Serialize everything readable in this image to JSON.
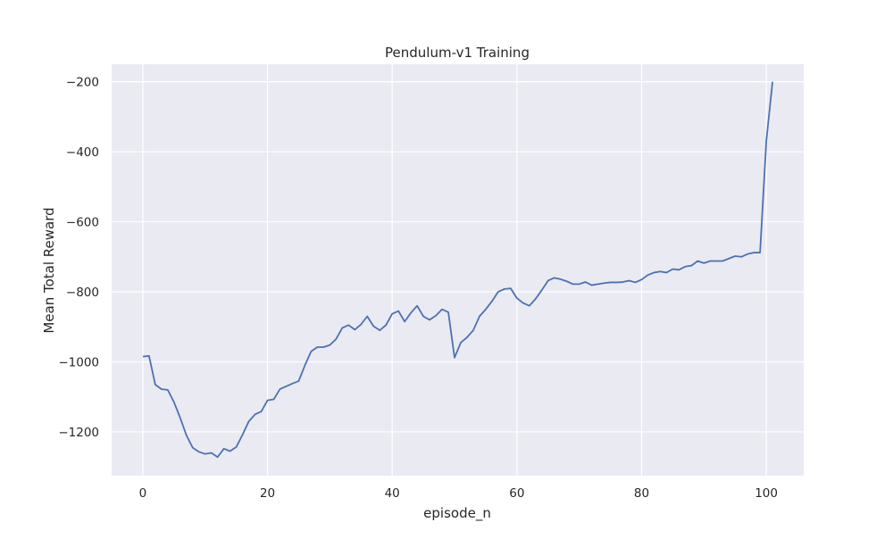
{
  "chart_data": {
    "type": "line",
    "title": "Pendulum-v1 Training",
    "xlabel": "episode_n",
    "ylabel": "Mean Total Reward",
    "xlim": [
      -5,
      106
    ],
    "ylim": [
      -1325,
      -150
    ],
    "x_ticks": [
      0,
      20,
      40,
      60,
      80,
      100
    ],
    "y_ticks": [
      -1200,
      -1000,
      -800,
      -600,
      -400,
      -200
    ],
    "grid": true,
    "colors": {
      "background": "#eaeaf2",
      "grid": "#ffffff",
      "line": "#4c72b0"
    },
    "series": [
      {
        "name": "Mean Total Reward",
        "x": [
          0,
          1,
          2,
          3,
          4,
          5,
          6,
          7,
          8,
          9,
          10,
          11,
          12,
          13,
          14,
          15,
          16,
          17,
          18,
          19,
          20,
          21,
          22,
          23,
          24,
          25,
          26,
          27,
          28,
          29,
          30,
          31,
          32,
          33,
          34,
          35,
          36,
          37,
          38,
          39,
          40,
          41,
          42,
          43,
          44,
          45,
          46,
          47,
          48,
          49,
          50,
          51,
          52,
          53,
          54,
          55,
          56,
          57,
          58,
          59,
          60,
          61,
          62,
          63,
          64,
          65,
          66,
          67,
          68,
          69,
          70,
          71,
          72,
          73,
          74,
          75,
          76,
          77,
          78,
          79,
          80,
          81,
          82,
          83,
          84,
          85,
          86,
          87,
          88,
          89,
          90,
          91,
          92,
          93,
          94,
          95,
          96,
          97,
          98,
          99,
          100,
          101
        ],
        "values": [
          -985,
          -983,
          -1065,
          -1078,
          -1080,
          -1115,
          -1160,
          -1210,
          -1245,
          -1257,
          -1263,
          -1260,
          -1272,
          -1248,
          -1255,
          -1243,
          -1208,
          -1170,
          -1150,
          -1142,
          -1110,
          -1107,
          -1078,
          -1070,
          -1062,
          -1055,
          -1010,
          -970,
          -958,
          -958,
          -952,
          -935,
          -903,
          -895,
          -908,
          -893,
          -870,
          -898,
          -910,
          -895,
          -863,
          -855,
          -885,
          -860,
          -840,
          -870,
          -880,
          -868,
          -850,
          -858,
          -988,
          -945,
          -930,
          -910,
          -870,
          -850,
          -827,
          -800,
          -792,
          -790,
          -818,
          -832,
          -840,
          -820,
          -795,
          -768,
          -760,
          -764,
          -770,
          -778,
          -778,
          -772,
          -781,
          -778,
          -775,
          -773,
          -773,
          -772,
          -768,
          -773,
          -765,
          -752,
          -745,
          -742,
          -745,
          -735,
          -737,
          -728,
          -725,
          -712,
          -718,
          -712,
          -712,
          -712,
          -705,
          -698,
          -700,
          -692,
          -688,
          -688,
          -370,
          -200
        ]
      }
    ]
  }
}
